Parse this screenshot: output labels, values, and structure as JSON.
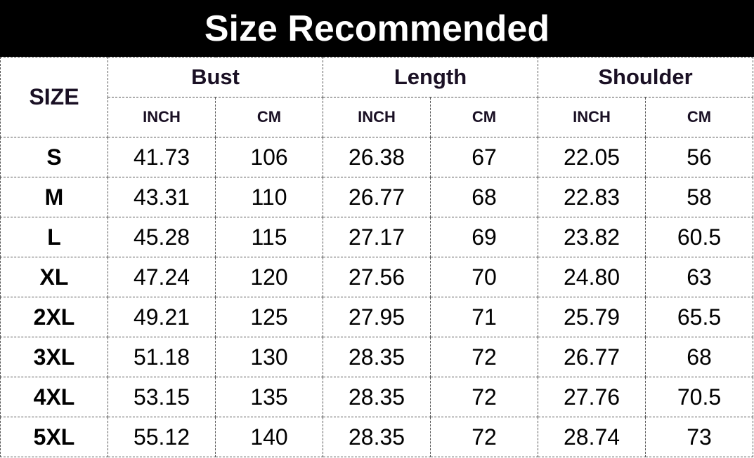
{
  "title": "Size Recommended",
  "headers": {
    "size": "SIZE",
    "groups": [
      "Bust",
      "Length",
      "Shoulder"
    ],
    "units": [
      "INCH",
      "CM",
      "INCH",
      "CM",
      "INCH",
      "CM"
    ]
  },
  "rows": [
    {
      "size": "S",
      "values": [
        "41.73",
        "106",
        "26.38",
        "67",
        "22.05",
        "56"
      ]
    },
    {
      "size": "M",
      "values": [
        "43.31",
        "110",
        "26.77",
        "68",
        "22.83",
        "58"
      ]
    },
    {
      "size": "L",
      "values": [
        "45.28",
        "115",
        "27.17",
        "69",
        "23.82",
        "60.5"
      ]
    },
    {
      "size": "XL",
      "values": [
        "47.24",
        "120",
        "27.56",
        "70",
        "24.80",
        "63"
      ]
    },
    {
      "size": "2XL",
      "values": [
        "49.21",
        "125",
        "27.95",
        "71",
        "25.79",
        "65.5"
      ]
    },
    {
      "size": "3XL",
      "values": [
        "51.18",
        "130",
        "28.35",
        "72",
        "26.77",
        "68"
      ]
    },
    {
      "size": "4XL",
      "values": [
        "53.15",
        "135",
        "28.35",
        "72",
        "27.76",
        "70.5"
      ]
    },
    {
      "size": "5XL",
      "values": [
        "55.12",
        "140",
        "28.35",
        "72",
        "28.74",
        "73"
      ]
    }
  ]
}
